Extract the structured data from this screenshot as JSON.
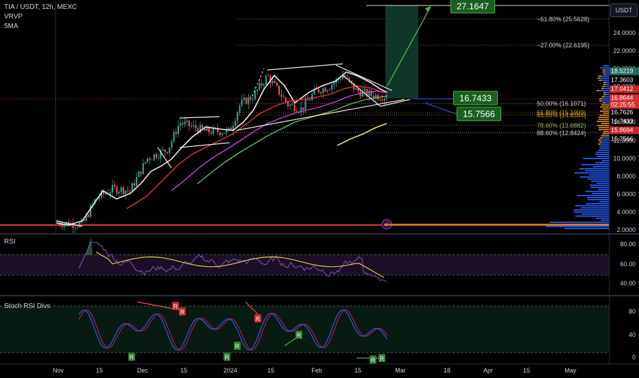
{
  "main": {
    "symbol_line": "TIA / USDT, 12h, MEXC",
    "indicators": [
      "VRVP",
      "5MA"
    ],
    "currency_button": "USDT",
    "fib_levels": [
      {
        "label": "−61.80% (25.5628)",
        "price": 25.5628,
        "color": "#d1d4dc"
      },
      {
        "label": "−27.00% (22.6195)",
        "price": 22.6195,
        "color": "#d1d4dc"
      },
      {
        "label": "50.00% (16.1071)",
        "price": 16.1071,
        "color": "#d1d4dc"
      },
      {
        "label": "61.80% (15.1000)",
        "price": 15.1,
        "color": "#b8a200"
      },
      {
        "label": "65.00% (14.8384)",
        "price": 14.8384,
        "color": "#d4a000"
      },
      {
        "label": "78.60% (13.6882)",
        "price": 13.6882,
        "color": "#a5b86a"
      },
      {
        "label": "88.60% (12.8424)",
        "price": 12.8424,
        "color": "#d1d4dc"
      }
    ],
    "callouts": {
      "target": "27.1647",
      "upper": "16.7433",
      "lower": "15.7566"
    },
    "price_axis": [
      "24.0000",
      "22.0000",
      "20.0000",
      "18.0000",
      "16.0000",
      "14.0000",
      "12.0000",
      "10.0000",
      "8.0000",
      "6.0000",
      "4.0000",
      "2.0000"
    ],
    "price_tags": [
      {
        "text": "18.5219",
        "bg": "#1e6f5c"
      },
      {
        "text": "17.3603",
        "bg": "transparent"
      },
      {
        "text": "17.0412",
        "bg": "#c62828"
      },
      {
        "text": "16.8644",
        "bg": "#d32f2f"
      },
      {
        "text": "02:25:55",
        "bg": "#d32f2f"
      },
      {
        "text": "16.7626",
        "bg": "transparent"
      },
      {
        "text": "16.7433",
        "bg": "transparent"
      },
      {
        "text": "15.8694",
        "bg": "#c62828"
      },
      {
        "text": "15.7566",
        "bg": "transparent"
      }
    ]
  },
  "rsi": {
    "title": "RSI",
    "axis": [
      "80.00",
      "60.00",
      "40.00"
    ]
  },
  "stoch": {
    "title": "Stoch RSI Divs",
    "axis": [
      "80",
      "40",
      "0"
    ],
    "signal_letter_bear": "R",
    "signal_letter_bull": "R"
  },
  "time_axis": [
    "Nov",
    "15",
    "Dec",
    "15",
    "2024",
    "15",
    "Feb",
    "15",
    "Mar",
    "18",
    "Apr",
    "15",
    "May"
  ],
  "colors": {
    "up": "#26a69a",
    "down": "#ef5350",
    "bull": "#2e7d32",
    "accent_green": "#4caf50"
  }
}
